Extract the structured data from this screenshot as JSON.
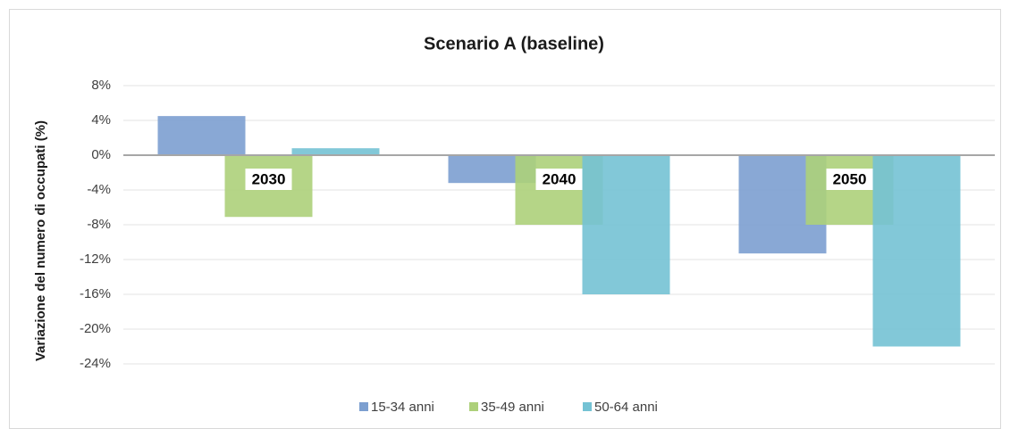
{
  "chart_data": {
    "type": "bar",
    "title": "Scenario A (baseline)",
    "y_label": "Variazione del numero di occupati (%)",
    "categories": [
      "2030",
      "2040",
      "2050"
    ],
    "series": [
      {
        "name": "15-34 anni",
        "color": "#7c9fd0",
        "values": [
          4.5,
          -3.2,
          -11.3
        ]
      },
      {
        "name": "35-49 anni",
        "color": "#add07a",
        "values": [
          -7.1,
          -8.0,
          -8.0
        ]
      },
      {
        "name": "50-64 anni",
        "color": "#74c2d4",
        "values": [
          0.8,
          -16.0,
          -22.0
        ]
      }
    ],
    "ylim": [
      -26,
      10
    ],
    "yticks": [
      {
        "value": 8,
        "label": "8%"
      },
      {
        "value": 4,
        "label": "4%"
      },
      {
        "value": 0,
        "label": "0%"
      },
      {
        "value": -4,
        "label": "-4%"
      },
      {
        "value": -8,
        "label": "-8%"
      },
      {
        "value": -12,
        "label": "-12%"
      },
      {
        "value": -16,
        "label": "-16%"
      },
      {
        "value": -20,
        "label": "-20%"
      },
      {
        "value": -24,
        "label": "-24%"
      }
    ],
    "grid": true,
    "legend": "bottom"
  }
}
